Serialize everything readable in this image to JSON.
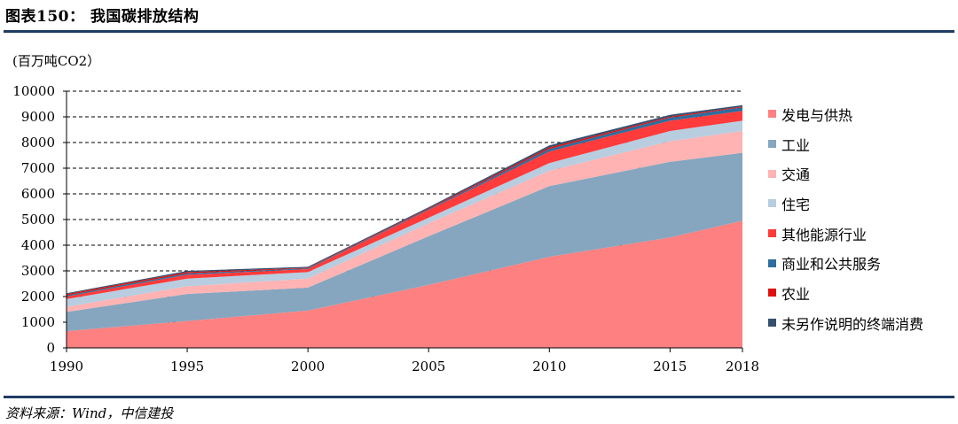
{
  "header": {
    "title": "图表150：  我国碳排放结构"
  },
  "footer": {
    "source": "资料来源：Wind，中信建投"
  },
  "chart_data": {
    "type": "area",
    "stacked": true,
    "title": "图表150：  我国碳排放结构",
    "unit_label": "(百万吨CO2）",
    "ylabel": "百万吨CO2",
    "xlabel": "",
    "x": [
      1990,
      1995,
      2000,
      2005,
      2010,
      2015,
      2018
    ],
    "ylim": [
      0,
      10000
    ],
    "yticks": [
      0,
      1000,
      2000,
      3000,
      4000,
      5000,
      6000,
      7000,
      8000,
      9000,
      10000
    ],
    "grid": "horizontal-dashed",
    "legend_position": "right",
    "series": [
      {
        "name": "发电与供热",
        "color": "#ff8080",
        "values": [
          650,
          1050,
          1450,
          2450,
          3550,
          4300,
          4950
        ]
      },
      {
        "name": "工业",
        "color": "#86a6bf",
        "values": [
          750,
          1050,
          900,
          1900,
          2750,
          2950,
          2650
        ]
      },
      {
        "name": "交通",
        "color": "#ffb3b3",
        "values": [
          200,
          300,
          350,
          500,
          600,
          800,
          850
        ]
      },
      {
        "name": "住宅",
        "color": "#b8cde0",
        "values": [
          300,
          300,
          250,
          220,
          300,
          400,
          400
        ]
      },
      {
        "name": "其他能源行业",
        "color": "#ff3b3b",
        "values": [
          100,
          150,
          120,
          300,
          450,
          400,
          380
        ]
      },
      {
        "name": "商业和公共服务",
        "color": "#2e6d9e",
        "values": [
          50,
          50,
          30,
          30,
          100,
          120,
          140
        ]
      },
      {
        "name": "农业",
        "color": "#e01010",
        "values": [
          50,
          50,
          20,
          30,
          60,
          40,
          30
        ]
      },
      {
        "name": "未另作说明的终端消费",
        "color": "#34506e",
        "values": [
          30,
          50,
          40,
          50,
          80,
          70,
          60
        ]
      }
    ]
  }
}
